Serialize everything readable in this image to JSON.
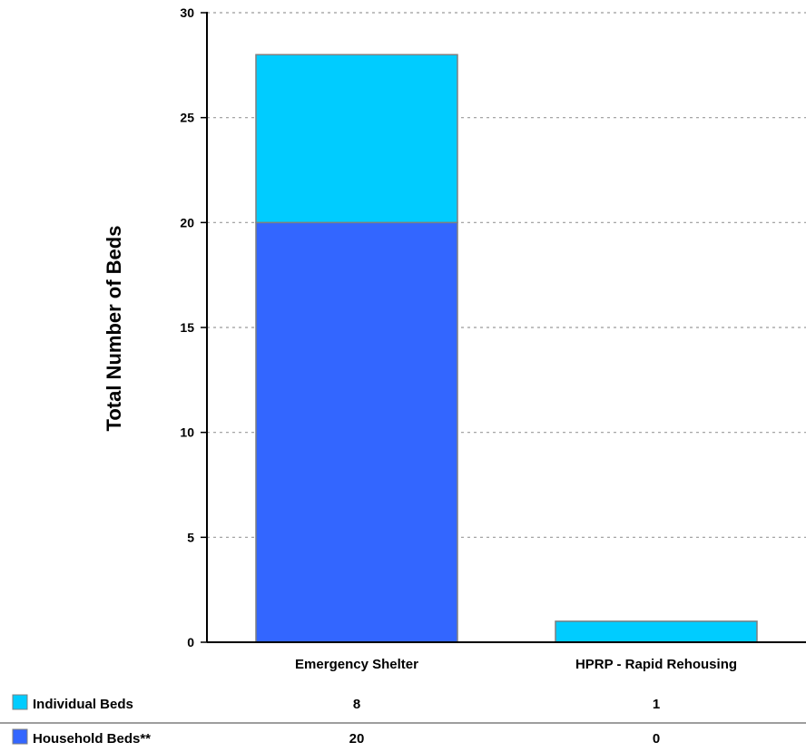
{
  "chart_data": {
    "type": "bar",
    "stacked": true,
    "categories": [
      "Emergency Shelter",
      "HPRP - Rapid Rehousing"
    ],
    "series": [
      {
        "name": "Household Beds**",
        "values": [
          20,
          0
        ],
        "color": "#3366ff"
      },
      {
        "name": "Individual Beds",
        "values": [
          8,
          1
        ],
        "color": "#00ccff"
      }
    ],
    "ylabel": "Total Number of Beds",
    "xlabel": "",
    "ylim": [
      0,
      30
    ],
    "yticks": [
      "0",
      "5",
      "10",
      "15",
      "20",
      "25",
      "30"
    ],
    "grid": true,
    "data_table": {
      "rows": [
        {
          "label": "Individual Beds",
          "values": [
            "8",
            "1"
          ],
          "color": "#00ccff"
        },
        {
          "label": "Household Beds**",
          "values": [
            "20",
            "0"
          ],
          "color": "#3366ff"
        }
      ]
    }
  }
}
